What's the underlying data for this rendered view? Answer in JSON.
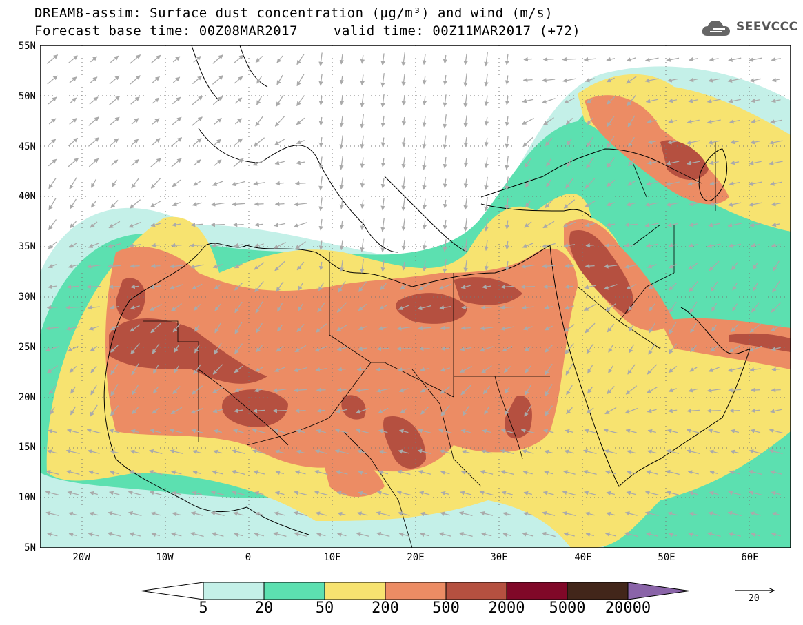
{
  "header": {
    "title_line1": "DREAM8-assim: Surface dust concentration (µg/m³) and wind (m/s)",
    "base_time": "Forecast base time: 00Z08MAR2017",
    "valid_time": "valid time: 00Z11MAR2017 (+72)"
  },
  "logo": {
    "text": "SEEVCCC",
    "icon": "cloud-icon"
  },
  "axes": {
    "lat_labels": [
      "55N",
      "50N",
      "45N",
      "40N",
      "35N",
      "30N",
      "25N",
      "20N",
      "15N",
      "10N",
      "5N"
    ],
    "lon_labels": [
      "20W",
      "10W",
      "0",
      "10E",
      "20E",
      "30E",
      "40E",
      "50E",
      "60E"
    ]
  },
  "colorbar": {
    "labels": [
      "5",
      "20",
      "50",
      "200",
      "500",
      "2000",
      "5000",
      "20000"
    ],
    "colors": [
      "#c4f0e8",
      "#5ce0b0",
      "#f7e370",
      "#ec8c64",
      "#b55040",
      "#800828",
      "#42261a",
      "#8a64a8"
    ]
  },
  "wind_reference": {
    "value": "20"
  }
}
